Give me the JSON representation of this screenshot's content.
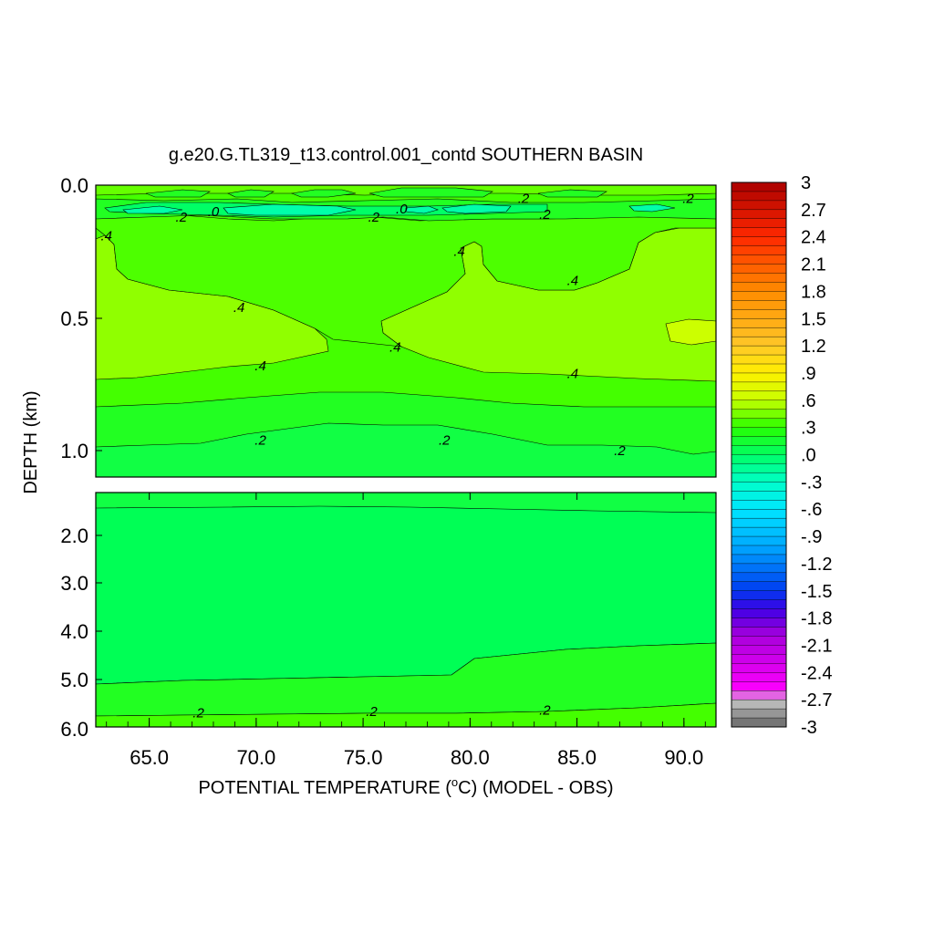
{
  "chart_data": {
    "type": "contour",
    "title": "g.e20.G.TL319_t13.control.001_contd SOUTHERN BASIN",
    "xlabel": "POTENTIAL TEMPERATURE (",
    "xlabel_sup": "o",
    "xlabel_tail": "C) (MODEL - OBS)",
    "ylabel": "DEPTH (km)",
    "xlim": [
      62.5,
      91.5
    ],
    "x_ticks": [
      "65.0",
      "70.0",
      "75.0",
      "80.0",
      "85.0",
      "90.0"
    ],
    "x_tick_values": [
      65,
      70,
      75,
      80,
      85,
      90
    ],
    "upper_panel": {
      "ylim": [
        0.0,
        1.1
      ],
      "y_ticks": [
        "0.0",
        "0.5",
        "1.0"
      ],
      "y_tick_values": [
        0.0,
        0.5,
        1.0
      ]
    },
    "lower_panel": {
      "ylim": [
        1.1,
        6.0
      ],
      "y_ticks": [
        "2.0",
        "3.0",
        "4.0",
        "5.0",
        "6.0"
      ],
      "y_tick_values": [
        2.0,
        3.0,
        4.0,
        5.0,
        6.0
      ]
    },
    "colorbar": {
      "min": -3,
      "max": 3,
      "step": 0.1,
      "labels": [
        "3",
        "2.7",
        "2.4",
        "2.1",
        "1.8",
        "1.5",
        "1.2",
        ".9",
        ".6",
        ".3",
        ".0",
        "-.3",
        "-.6",
        "-.9",
        "-1.2",
        "-1.5",
        "-1.8",
        "-2.1",
        "-2.4",
        "-2.7",
        "-3"
      ]
    },
    "contour_labels": [
      {
        "text": ".2",
        "x": 66.5,
        "depth": 0.12
      },
      {
        "text": ".0",
        "x": 68.0,
        "depth": 0.1
      },
      {
        "text": ".2",
        "x": 75.5,
        "depth": 0.12
      },
      {
        "text": ".0",
        "x": 76.8,
        "depth": 0.09
      },
      {
        "text": ".2",
        "x": 82.5,
        "depth": 0.05
      },
      {
        "text": ".2",
        "x": 83.5,
        "depth": 0.11
      },
      {
        "text": ".2",
        "x": 90.2,
        "depth": 0.05
      },
      {
        "text": ".4",
        "x": 63.0,
        "depth": 0.19
      },
      {
        "text": ".4",
        "x": 79.5,
        "depth": 0.25
      },
      {
        "text": ".4",
        "x": 84.8,
        "depth": 0.36
      },
      {
        "text": ".4",
        "x": 69.2,
        "depth": 0.46
      },
      {
        "text": ".4",
        "x": 76.5,
        "depth": 0.61
      },
      {
        "text": ".4",
        "x": 70.2,
        "depth": 0.68
      },
      {
        "text": ".4",
        "x": 84.8,
        "depth": 0.71
      },
      {
        "text": ".2",
        "x": 70.2,
        "depth": 0.96
      },
      {
        "text": ".2",
        "x": 78.8,
        "depth": 0.96
      },
      {
        "text": ".2",
        "x": 87.0,
        "depth": 1.0
      },
      {
        "text": ".2",
        "x": 67.3,
        "depth": 5.7
      },
      {
        "text": ".2",
        "x": 75.4,
        "depth": 5.68
      },
      {
        "text": ".2",
        "x": 83.5,
        "depth": 5.65
      }
    ]
  }
}
